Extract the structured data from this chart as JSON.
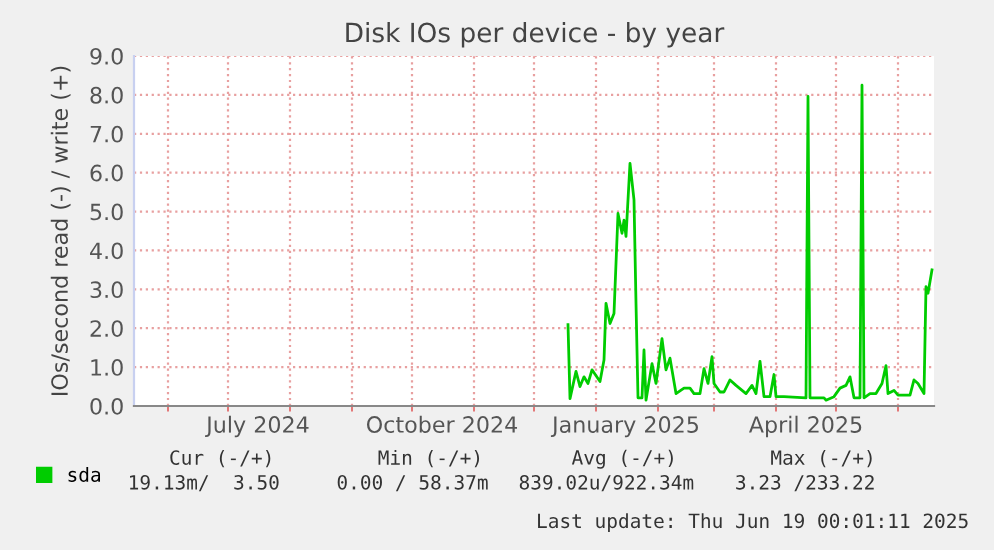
{
  "chart_data": {
    "type": "line",
    "title": "Disk IOs per device - by year",
    "ylabel": "IOs/second read (-) / write (+)",
    "x": [
      "2024-12-18",
      "2024-12-19",
      "2024-12-22",
      "2024-12-24",
      "2024-12-26",
      "2024-12-28",
      "2024-12-30",
      "2025-01-03",
      "2025-01-05",
      "2025-01-06",
      "2025-01-08",
      "2025-01-10",
      "2025-01-12",
      "2025-01-14",
      "2025-01-15",
      "2025-01-16",
      "2025-01-18",
      "2025-01-20",
      "2025-01-21",
      "2025-01-22",
      "2025-01-24",
      "2025-01-25",
      "2025-01-26",
      "2025-01-29",
      "2025-01-31",
      "2025-02-03",
      "2025-02-05",
      "2025-02-07",
      "2025-02-10",
      "2025-02-14",
      "2025-02-17",
      "2025-02-19",
      "2025-02-22",
      "2025-02-24",
      "2025-02-26",
      "2025-02-28",
      "2025-03-01",
      "2025-03-04",
      "2025-03-06",
      "2025-03-09",
      "2025-03-12",
      "2025-03-17",
      "2025-03-20",
      "2025-03-22",
      "2025-03-24",
      "2025-03-26",
      "2025-03-29",
      "2025-03-31",
      "2025-04-01",
      "2025-04-05",
      "2025-04-16",
      "2025-04-17",
      "2025-04-18",
      "2025-04-25",
      "2025-04-26",
      "2025-04-30",
      "2025-05-03",
      "2025-05-06",
      "2025-05-08",
      "2025-05-10",
      "2025-05-13",
      "2025-05-14",
      "2025-05-15",
      "2025-05-18",
      "2025-05-21",
      "2025-05-24",
      "2025-05-26",
      "2025-05-27",
      "2025-05-30",
      "2025-06-01",
      "2025-06-07",
      "2025-06-09",
      "2025-06-11",
      "2025-06-14",
      "2025-06-15",
      "2025-06-16",
      "2025-06-18"
    ],
    "series": [
      {
        "name": "sda",
        "color": "#00cc00",
        "values": [
          2.09,
          0.19,
          0.89,
          0.5,
          0.75,
          0.58,
          0.93,
          0.63,
          1.18,
          2.64,
          2.12,
          2.38,
          4.95,
          4.44,
          4.78,
          4.36,
          6.24,
          5.3,
          2.64,
          0.21,
          0.21,
          1.44,
          0.15,
          1.09,
          0.58,
          1.73,
          0.93,
          1.23,
          0.32,
          0.46,
          0.46,
          0.32,
          0.32,
          0.96,
          0.58,
          1.27,
          0.58,
          0.36,
          0.36,
          0.67,
          0.53,
          0.32,
          0.53,
          0.32,
          1.15,
          0.24,
          0.24,
          0.81,
          0.24,
          0.24,
          0.21,
          7.96,
          0.21,
          0.21,
          0.15,
          0.24,
          0.46,
          0.53,
          0.75,
          0.21,
          0.21,
          8.25,
          0.21,
          0.32,
          0.32,
          0.58,
          1.04,
          0.32,
          0.4,
          0.28,
          0.28,
          0.67,
          0.58,
          0.32,
          3.07,
          2.9,
          3.5
        ]
      }
    ],
    "xlim": [
      "2024-05-15",
      "2025-06-19"
    ],
    "xticks": [
      {
        "value": "2024-06-01",
        "label": null
      },
      {
        "value": "2024-07-01",
        "label": null
      },
      {
        "value": "2024-07-16",
        "label": "July 2024"
      },
      {
        "value": "2024-08-01",
        "label": null
      },
      {
        "value": "2024-09-01",
        "label": null
      },
      {
        "value": "2024-10-01",
        "label": null
      },
      {
        "value": "2024-10-16",
        "label": "October 2024"
      },
      {
        "value": "2024-11-01",
        "label": null
      },
      {
        "value": "2024-12-01",
        "label": null
      },
      {
        "value": "2025-01-01",
        "label": null
      },
      {
        "value": "2025-01-16",
        "label": "January 2025"
      },
      {
        "value": "2025-02-01",
        "label": null
      },
      {
        "value": "2025-03-01",
        "label": null
      },
      {
        "value": "2025-04-01",
        "label": null
      },
      {
        "value": "2025-04-16",
        "label": "April 2025"
      },
      {
        "value": "2025-05-01",
        "label": null
      },
      {
        "value": "2025-06-01",
        "label": null
      }
    ],
    "ylim": [
      0,
      9
    ],
    "yticks": [
      {
        "value": 0,
        "label": "0.0"
      },
      {
        "value": 1,
        "label": "1.0"
      },
      {
        "value": 2,
        "label": "2.0"
      },
      {
        "value": 3,
        "label": "3.0"
      },
      {
        "value": 4,
        "label": "4.0"
      },
      {
        "value": 5,
        "label": "5.0"
      },
      {
        "value": 6,
        "label": "6.0"
      },
      {
        "value": 7,
        "label": "7.0"
      },
      {
        "value": 8,
        "label": "8.0"
      },
      {
        "value": 9,
        "label": "9.0"
      }
    ],
    "grid": true,
    "legend": "bottom left",
    "annotations": [
      "Cur (-/+)",
      "Min (-/+)",
      "Avg (-/+)",
      "Max (-/+)",
      "19.13m/  3.50",
      "0.00 / 58.37m",
      "839.02u/922.34m",
      "3.23 /233.22",
      "Last update: Thu Jun 19 00:01:11 2025"
    ]
  }
}
